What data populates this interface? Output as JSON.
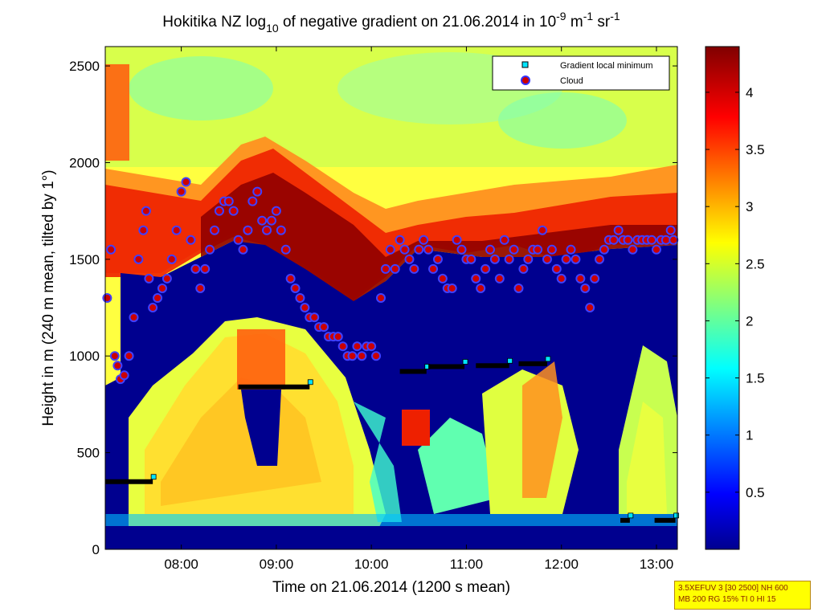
{
  "chart_data": {
    "type": "heatmap",
    "title": {
      "prefix": "Hokitika NZ log",
      "prefix_sub": "10",
      "middle": " of negative gradient on 21.06.2014 in 10",
      "exp1": "-9",
      "unit_m": " m",
      "exp2": "-1",
      "unit_sr": " sr",
      "exp3": "-1"
    },
    "xlabel": "Time on 21.06.2014 (1200 s mean)",
    "ylabel": "Height in m (240 m mean, tilted by 1°)",
    "x_ticks": [
      "08:00",
      "09:00",
      "10:00",
      "11:00",
      "12:00",
      "13:00"
    ],
    "x_tick_hours": [
      8,
      9,
      10,
      11,
      12,
      13
    ],
    "xlim_hours": [
      7.2,
      13.22
    ],
    "y_ticks": [
      0,
      500,
      1000,
      1500,
      2000,
      2500
    ],
    "ylim": [
      0,
      2600
    ],
    "colorbar": {
      "ticks": [
        0.5,
        1,
        1.5,
        2,
        2.5,
        3,
        3.5,
        4
      ],
      "tick_labels": [
        "0.5",
        "1",
        "1.5",
        "2",
        "2.5",
        "3",
        "3.5",
        "4"
      ],
      "range": [
        0,
        4.4
      ],
      "colormap": "jet"
    },
    "legend": {
      "placement": "top-right",
      "entries": [
        {
          "label": "Gradient local minimum",
          "marker": "square",
          "color": "#00e5ff"
        },
        {
          "label": "Cloud",
          "marker": "circle",
          "color": "#cc0000",
          "edge": "#3333ff"
        }
      ]
    },
    "cloud_series": {
      "name": "Cloud",
      "x_hours": [
        7.22,
        7.26,
        7.3,
        7.33,
        7.36,
        7.4,
        7.45,
        7.5,
        7.55,
        7.6,
        7.63,
        7.66,
        7.7,
        7.75,
        7.8,
        7.85,
        7.9,
        7.95,
        8.0,
        8.05,
        8.1,
        8.15,
        8.2,
        8.25,
        8.3,
        8.35,
        8.4,
        8.45,
        8.5,
        8.55,
        8.6,
        8.65,
        8.7,
        8.75,
        8.8,
        8.85,
        8.9,
        8.95,
        9.0,
        9.05,
        9.1,
        9.15,
        9.2,
        9.25,
        9.3,
        9.35,
        9.4,
        9.45,
        9.5,
        9.55,
        9.6,
        9.65,
        9.7,
        9.75,
        9.8,
        9.85,
        9.9,
        9.95,
        10.0,
        10.05,
        10.1,
        10.15,
        10.2,
        10.25,
        10.3,
        10.35,
        10.4,
        10.45,
        10.5,
        10.55,
        10.6,
        10.65,
        10.7,
        10.75,
        10.8,
        10.85,
        10.9,
        10.95,
        11.0,
        11.05,
        11.1,
        11.15,
        11.2,
        11.25,
        11.3,
        11.35,
        11.4,
        11.45,
        11.5,
        11.55,
        11.6,
        11.65,
        11.7,
        11.75,
        11.8,
        11.85,
        11.9,
        11.95,
        12.0,
        12.05,
        12.1,
        12.15,
        12.2,
        12.25,
        12.3,
        12.35,
        12.4,
        12.45,
        12.5,
        12.55,
        12.6,
        12.65,
        12.7,
        12.75,
        12.8,
        12.85,
        12.9,
        12.95,
        13.0,
        13.05,
        13.1,
        13.15,
        13.18
      ],
      "heights_m": [
        1300,
        1550,
        1000,
        950,
        880,
        900,
        1000,
        1200,
        1500,
        1650,
        1750,
        1400,
        1250,
        1300,
        1350,
        1400,
        1500,
        1650,
        1850,
        1900,
        1600,
        1450,
        1350,
        1450,
        1550,
        1650,
        1750,
        1800,
        1800,
        1750,
        1600,
        1550,
        1650,
        1800,
        1850,
        1700,
        1650,
        1700,
        1750,
        1650,
        1550,
        1400,
        1350,
        1300,
        1250,
        1200,
        1200,
        1150,
        1150,
        1100,
        1100,
        1100,
        1050,
        1000,
        1000,
        1050,
        1000,
        1050,
        1050,
        1000,
        1300,
        1450,
        1550,
        1450,
        1600,
        1550,
        1500,
        1450,
        1550,
        1600,
        1550,
        1450,
        1500,
        1400,
        1350,
        1350,
        1600,
        1550,
        1500,
        1500,
        1400,
        1350,
        1450,
        1550,
        1500,
        1400,
        1600,
        1500,
        1550,
        1350,
        1450,
        1500,
        1550,
        1550,
        1650,
        1500,
        1550,
        1450,
        1400,
        1500,
        1550,
        1500,
        1400,
        1350,
        1250,
        1400,
        1500,
        1550,
        1600,
        1600,
        1650,
        1600,
        1600,
        1550,
        1600,
        1600,
        1600,
        1600,
        1550,
        1600,
        1600,
        1650,
        1600
      ]
    },
    "gradient_min_segments": [
      {
        "x_start_hours": 7.2,
        "x_end_hours": 7.7,
        "height_m": 350
      },
      {
        "x_start_hours": 8.6,
        "x_end_hours": 9.35,
        "height_m": 840
      },
      {
        "x_start_hours": 10.3,
        "x_end_hours": 10.58,
        "height_m": 920
      },
      {
        "x_start_hours": 10.6,
        "x_end_hours": 10.98,
        "height_m": 945
      },
      {
        "x_start_hours": 11.1,
        "x_end_hours": 11.45,
        "height_m": 950
      },
      {
        "x_start_hours": 11.55,
        "x_end_hours": 11.85,
        "height_m": 960
      },
      {
        "x_start_hours": 12.62,
        "x_end_hours": 12.72,
        "height_m": 150
      },
      {
        "x_start_hours": 12.98,
        "x_end_hours": 13.2,
        "height_m": 150
      }
    ]
  },
  "info_box": {
    "line1": "3.5XEFUV 3 [30 2500] NH 600",
    "line2": "MB 200 RG 15% TI 0 HI 15"
  }
}
